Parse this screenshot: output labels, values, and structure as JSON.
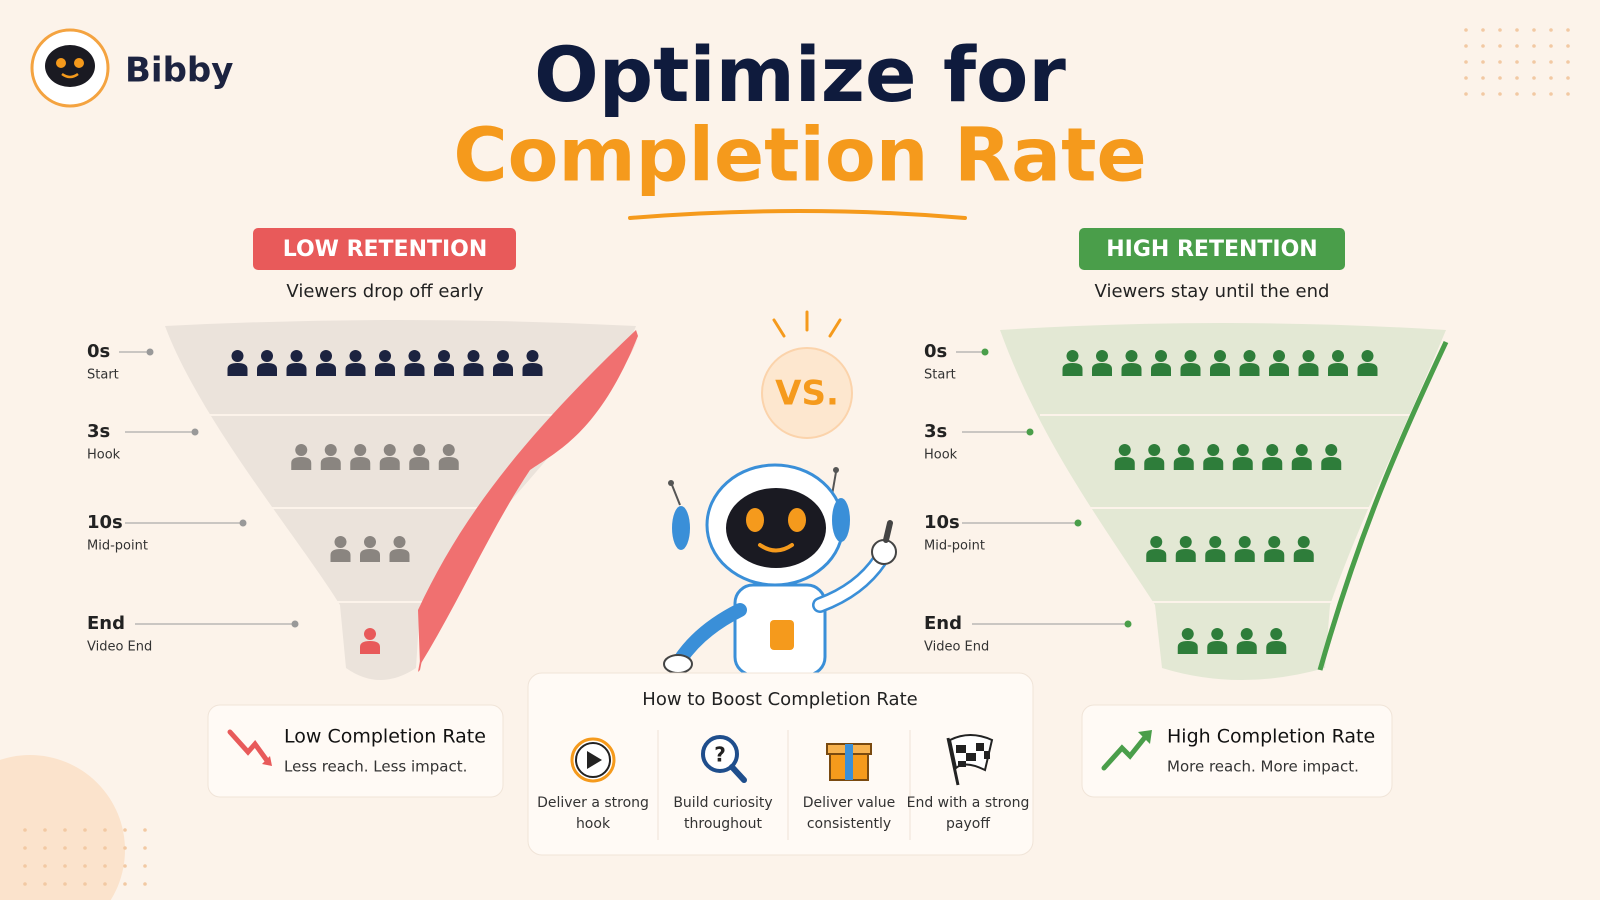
{
  "brand": "Bibby",
  "title": {
    "line1": "Optimize for",
    "line2": "Completion Rate"
  },
  "vs": "VS.",
  "low": {
    "badge": "LOW RETENTION",
    "subtitle": "Viewers drop off early",
    "stages": [
      {
        "time": "0s",
        "label": "Start",
        "viewers": 11
      },
      {
        "time": "3s",
        "label": "Hook",
        "viewers": 6
      },
      {
        "time": "10s",
        "label": "Mid-point",
        "viewers": 3
      },
      {
        "time": "End",
        "label": "Video End",
        "viewers": 1
      }
    ],
    "summary": {
      "title": "Low Completion Rate",
      "text": "Less reach. Less impact."
    }
  },
  "high": {
    "badge": "HIGH RETENTION",
    "subtitle": "Viewers stay until the end",
    "stages": [
      {
        "time": "0s",
        "label": "Start",
        "viewers": 11
      },
      {
        "time": "3s",
        "label": "Hook",
        "viewers": 8
      },
      {
        "time": "10s",
        "label": "Mid-point",
        "viewers": 6
      },
      {
        "time": "End",
        "label": "Video End",
        "viewers": 4
      }
    ],
    "summary": {
      "title": "High Completion Rate",
      "text": "More reach. More impact."
    }
  },
  "tips": {
    "title": "How to Boost Completion Rate",
    "items": [
      "Deliver a strong hook",
      "Build curiosity throughout",
      "Deliver value consistently",
      "End with a strong payoff"
    ]
  }
}
